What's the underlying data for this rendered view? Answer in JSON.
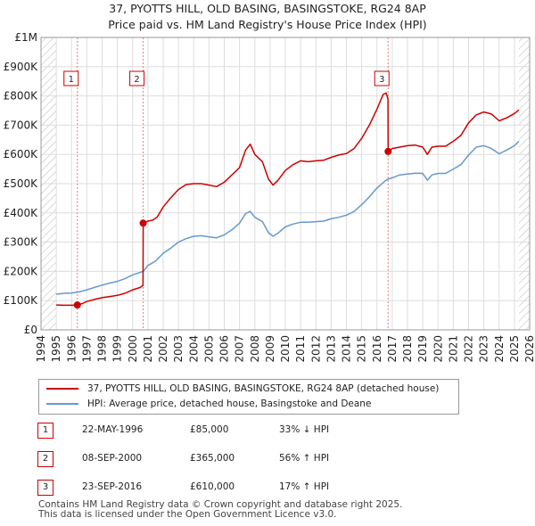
{
  "chart_data": {
    "type": "line",
    "title": "37, PYOTTS HILL, OLD BASING, BASINGSTOKE, RG24 8AP",
    "subtitle": "Price paid vs. HM Land Registry's House Price Index (HPI)",
    "xlabel": "",
    "ylabel": "",
    "xlim": [
      1994,
      2026
    ],
    "ylim": [
      0,
      1000000
    ],
    "x_ticks": [
      "1994",
      "1995",
      "1996",
      "1997",
      "1998",
      "1999",
      "2000",
      "2001",
      "2002",
      "2003",
      "2004",
      "2005",
      "2006",
      "2007",
      "2008",
      "2009",
      "2010",
      "2011",
      "2012",
      "2013",
      "2014",
      "2015",
      "2016",
      "2017",
      "2018",
      "2019",
      "2020",
      "2021",
      "2022",
      "2023",
      "2024",
      "2025",
      "2026"
    ],
    "y_ticks": [
      {
        "value": 0,
        "label": "£0"
      },
      {
        "value": 100000,
        "label": "£100K"
      },
      {
        "value": 200000,
        "label": "£200K"
      },
      {
        "value": 300000,
        "label": "£300K"
      },
      {
        "value": 400000,
        "label": "£400K"
      },
      {
        "value": 500000,
        "label": "£500K"
      },
      {
        "value": 600000,
        "label": "£600K"
      },
      {
        "value": 700000,
        "label": "£700K"
      },
      {
        "value": 800000,
        "label": "£800K"
      },
      {
        "value": 900000,
        "label": "£900K"
      },
      {
        "value": 1000000,
        "label": "£1M"
      }
    ],
    "grid": true,
    "hatch_ranges": [
      [
        1994,
        1995
      ],
      [
        2025.3,
        2026
      ]
    ],
    "series": [
      {
        "name": "37, PYOTTS HILL, OLD BASING, BASINGSTOKE, RG24 8AP (detached house)",
        "color": "#cc0000",
        "points": [
          [
            1995,
            85000
          ],
          [
            1995.5,
            84000
          ],
          [
            1996,
            84000
          ],
          [
            1996.38,
            85000
          ],
          [
            1996.7,
            90000
          ],
          [
            1997,
            97000
          ],
          [
            1997.5,
            104000
          ],
          [
            1998,
            110000
          ],
          [
            1998.5,
            114000
          ],
          [
            1999,
            118000
          ],
          [
            1999.5,
            125000
          ],
          [
            2000,
            137000
          ],
          [
            2000.5,
            145000
          ],
          [
            2000.68,
            152000
          ],
          [
            2000.69,
            365000
          ],
          [
            2001,
            372000
          ],
          [
            2001.3,
            375000
          ],
          [
            2001.6,
            385000
          ],
          [
            2002,
            420000
          ],
          [
            2002.5,
            452000
          ],
          [
            2003,
            480000
          ],
          [
            2003.5,
            497000
          ],
          [
            2004,
            500000
          ],
          [
            2004.5,
            500000
          ],
          [
            2005,
            495000
          ],
          [
            2005.5,
            490000
          ],
          [
            2006,
            505000
          ],
          [
            2006.5,
            530000
          ],
          [
            2007,
            555000
          ],
          [
            2007.4,
            615000
          ],
          [
            2007.7,
            635000
          ],
          [
            2008,
            600000
          ],
          [
            2008.5,
            575000
          ],
          [
            2008.9,
            515000
          ],
          [
            2009.2,
            495000
          ],
          [
            2009.5,
            510000
          ],
          [
            2010,
            545000
          ],
          [
            2010.5,
            565000
          ],
          [
            2011,
            578000
          ],
          [
            2011.5,
            575000
          ],
          [
            2012,
            578000
          ],
          [
            2012.5,
            580000
          ],
          [
            2013,
            590000
          ],
          [
            2013.5,
            598000
          ],
          [
            2014,
            603000
          ],
          [
            2014.5,
            620000
          ],
          [
            2015,
            655000
          ],
          [
            2015.5,
            700000
          ],
          [
            2016,
            755000
          ],
          [
            2016.4,
            805000
          ],
          [
            2016.6,
            810000
          ],
          [
            2016.72,
            790000
          ],
          [
            2016.73,
            610000
          ],
          [
            2017,
            620000
          ],
          [
            2017.5,
            625000
          ],
          [
            2018,
            630000
          ],
          [
            2018.5,
            632000
          ],
          [
            2019,
            625000
          ],
          [
            2019.3,
            600000
          ],
          [
            2019.6,
            625000
          ],
          [
            2020,
            628000
          ],
          [
            2020.5,
            628000
          ],
          [
            2021,
            645000
          ],
          [
            2021.5,
            665000
          ],
          [
            2022,
            708000
          ],
          [
            2022.5,
            735000
          ],
          [
            2023,
            745000
          ],
          [
            2023.5,
            738000
          ],
          [
            2024,
            715000
          ],
          [
            2024.5,
            725000
          ],
          [
            2025,
            740000
          ],
          [
            2025.3,
            752000
          ]
        ]
      },
      {
        "name": "HPI: Average price, detached house, Basingstoke and Deane",
        "color": "#6699cc",
        "points": [
          [
            1995,
            122000
          ],
          [
            1995.5,
            125000
          ],
          [
            1996,
            126000
          ],
          [
            1996.5,
            130000
          ],
          [
            1997,
            137000
          ],
          [
            1997.5,
            145000
          ],
          [
            1998,
            153000
          ],
          [
            1998.5,
            160000
          ],
          [
            1999,
            166000
          ],
          [
            1999.5,
            175000
          ],
          [
            2000,
            188000
          ],
          [
            2000.7,
            200000
          ],
          [
            2001,
            220000
          ],
          [
            2001.5,
            235000
          ],
          [
            2002,
            262000
          ],
          [
            2002.5,
            280000
          ],
          [
            2003,
            300000
          ],
          [
            2003.5,
            312000
          ],
          [
            2004,
            320000
          ],
          [
            2004.5,
            322000
          ],
          [
            2005,
            318000
          ],
          [
            2005.5,
            315000
          ],
          [
            2006,
            325000
          ],
          [
            2006.5,
            342000
          ],
          [
            2007,
            365000
          ],
          [
            2007.4,
            398000
          ],
          [
            2007.7,
            405000
          ],
          [
            2008,
            385000
          ],
          [
            2008.5,
            370000
          ],
          [
            2008.9,
            332000
          ],
          [
            2009.2,
            320000
          ],
          [
            2009.5,
            330000
          ],
          [
            2010,
            352000
          ],
          [
            2010.5,
            362000
          ],
          [
            2011,
            368000
          ],
          [
            2011.5,
            368000
          ],
          [
            2012,
            370000
          ],
          [
            2012.5,
            372000
          ],
          [
            2013,
            380000
          ],
          [
            2013.5,
            385000
          ],
          [
            2014,
            392000
          ],
          [
            2014.5,
            405000
          ],
          [
            2015,
            428000
          ],
          [
            2015.5,
            455000
          ],
          [
            2016,
            485000
          ],
          [
            2016.5,
            508000
          ],
          [
            2016.7,
            515000
          ],
          [
            2017,
            520000
          ],
          [
            2017.5,
            530000
          ],
          [
            2018,
            533000
          ],
          [
            2018.5,
            536000
          ],
          [
            2019,
            535000
          ],
          [
            2019.3,
            512000
          ],
          [
            2019.6,
            530000
          ],
          [
            2020,
            535000
          ],
          [
            2020.5,
            535000
          ],
          [
            2021,
            550000
          ],
          [
            2021.5,
            565000
          ],
          [
            2022,
            598000
          ],
          [
            2022.5,
            625000
          ],
          [
            2023,
            630000
          ],
          [
            2023.5,
            620000
          ],
          [
            2024,
            602000
          ],
          [
            2024.5,
            615000
          ],
          [
            2025,
            630000
          ],
          [
            2025.3,
            645000
          ]
        ]
      }
    ],
    "sales": [
      {
        "label": "1",
        "x": 1996.38,
        "y": 85000
      },
      {
        "label": "2",
        "x": 2000.69,
        "y": 365000
      },
      {
        "label": "3",
        "x": 2016.73,
        "y": 610000
      }
    ]
  },
  "legend": {
    "property_label": "37, PYOTTS HILL, OLD BASING, BASINGSTOKE, RG24 8AP (detached house)",
    "hpi_label": "HPI: Average price, detached house, Basingstoke and Deane"
  },
  "transactions": [
    {
      "num": "1",
      "date": "22-MAY-1996",
      "price": "£85,000",
      "hpi": "33% ↓ HPI"
    },
    {
      "num": "2",
      "date": "08-SEP-2000",
      "price": "£365,000",
      "hpi": "56% ↑ HPI"
    },
    {
      "num": "3",
      "date": "23-SEP-2016",
      "price": "£610,000",
      "hpi": "17% ↑ HPI"
    }
  ],
  "footer": {
    "line1": "Contains HM Land Registry data © Crown copyright and database right 2025.",
    "line2": "This data is licensed under the Open Government Licence v3.0."
  },
  "colors": {
    "property": "#cc0000",
    "hpi": "#6699cc",
    "marker_line": "#e08080",
    "grid": "#dddddd",
    "hatch": "#cccccc"
  }
}
